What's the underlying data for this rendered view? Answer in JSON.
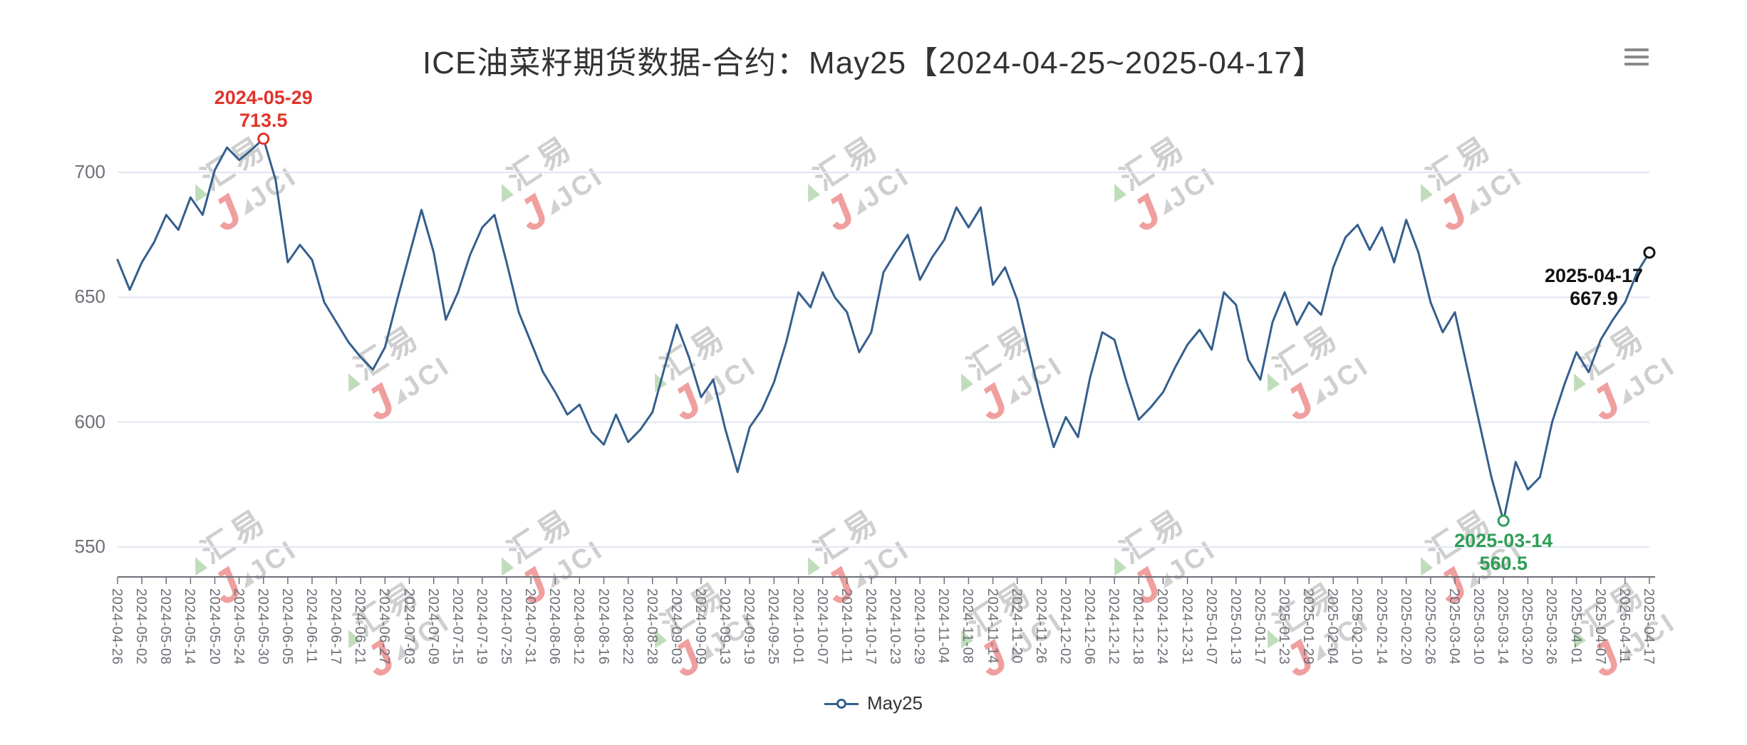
{
  "header": {
    "menu_icon": "hamburger-icon"
  },
  "watermark": {
    "brand_cn": "汇易",
    "brand_en": "JCI"
  },
  "colors": {
    "line": "#355f8d",
    "grid": "#e0e6f1",
    "axis": "#6e7079",
    "max_annotation": "#e0352b",
    "min_annotation": "#2f9d57",
    "last_annotation": "#111111",
    "title_text": "#333333",
    "watermark_gray": "#c7c7c7",
    "watermark_red": "#ee8f8f",
    "watermark_green": "#b5d8ae"
  },
  "chart_data": {
    "type": "line",
    "title": "ICE油菜籽期货数据-合约：May25【2024-04-25~2025-04-17】",
    "legend": [
      "May25"
    ],
    "legend_position": "bottom-center",
    "grid": true,
    "ylim": [
      538,
      720
    ],
    "yticks": [
      550,
      600,
      650,
      700
    ],
    "xlabel": "",
    "ylabel": "",
    "x_tick_labels": [
      "2024-04-26",
      "2024-05-02",
      "2024-05-08",
      "2024-05-14",
      "2024-05-20",
      "2024-05-24",
      "2024-05-30",
      "2024-06-05",
      "2024-06-11",
      "2024-06-17",
      "2024-06-21",
      "2024-06-27",
      "2024-07-03",
      "2024-07-09",
      "2024-07-15",
      "2024-07-19",
      "2024-07-25",
      "2024-07-31",
      "2024-08-06",
      "2024-08-12",
      "2024-08-16",
      "2024-08-22",
      "2024-08-28",
      "2024-09-03",
      "2024-09-09",
      "2024-09-13",
      "2024-09-19",
      "2024-09-25",
      "2024-10-01",
      "2024-10-07",
      "2024-10-11",
      "2024-10-17",
      "2024-10-23",
      "2024-10-29",
      "2024-11-04",
      "2024-11-08",
      "2024-11-14",
      "2024-11-20",
      "2024-11-26",
      "2024-12-02",
      "2024-12-06",
      "2024-12-12",
      "2024-12-18",
      "2024-12-24",
      "2024-12-31",
      "2025-01-07",
      "2025-01-13",
      "2025-01-17",
      "2025-01-23",
      "2025-01-29",
      "2025-02-04",
      "2025-02-10",
      "2025-02-14",
      "2025-02-20",
      "2025-02-26",
      "2025-03-04",
      "2025-03-10",
      "2025-03-14",
      "2025-03-20",
      "2025-03-26",
      "2025-04-01",
      "2025-04-07",
      "2025-04-11",
      "2025-04-17"
    ],
    "series": [
      {
        "name": "May25",
        "color": "#355f8d",
        "values": [
          665,
          653,
          664,
          672,
          683,
          677,
          690,
          683,
          701,
          710,
          705,
          709,
          713.5,
          697,
          664,
          671,
          665,
          648,
          640,
          632,
          626,
          621,
          630,
          649,
          667,
          685,
          668,
          641,
          652,
          667,
          678,
          683,
          664,
          644,
          632,
          620,
          612,
          603,
          607,
          596,
          591,
          603,
          592,
          597,
          604,
          622,
          639,
          626,
          610,
          617,
          597,
          580,
          598,
          605,
          616,
          632,
          652,
          646,
          660,
          650,
          644,
          628,
          636,
          660,
          668,
          675,
          657,
          666,
          673,
          686,
          678,
          686,
          655,
          662,
          649,
          628,
          608,
          590,
          602,
          594,
          618,
          636,
          633,
          616,
          601,
          606,
          612,
          622,
          631,
          637,
          629,
          652,
          647,
          625,
          617,
          640,
          652,
          639,
          648,
          643,
          662,
          674,
          679,
          669,
          678,
          664,
          681,
          668,
          648,
          636,
          644,
          622,
          600,
          578,
          560.5,
          584,
          573,
          578,
          600,
          615,
          628,
          620,
          633,
          641,
          648,
          660,
          667.9
        ]
      }
    ],
    "annotations": [
      {
        "kind": "max",
        "date": "2024-05-29",
        "value": 713.5,
        "index": 12,
        "color": "#e0352b"
      },
      {
        "kind": "min",
        "date": "2025-03-14",
        "value": 560.5,
        "index": 114,
        "color": "#2f9d57"
      },
      {
        "kind": "last",
        "date": "2025-04-17",
        "value": 667.9,
        "index": 126,
        "color": "#111111"
      }
    ]
  }
}
